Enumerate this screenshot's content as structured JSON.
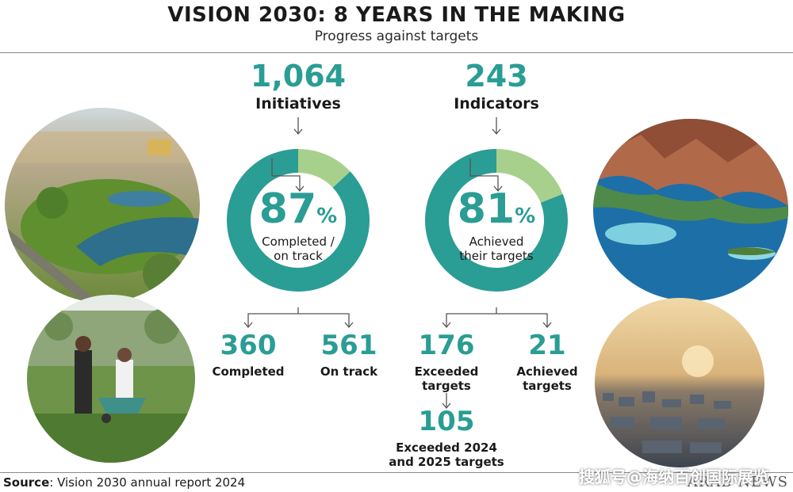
{
  "header": {
    "title": "VISION 2030: 8 YEARS IN THE MAKING",
    "subtitle": "Progress against targets"
  },
  "chart_data": [
    {
      "type": "pie",
      "total_value": "1,064",
      "total_label": "Initiatives",
      "center_value": "87",
      "center_unit": "%",
      "center_label_line1": "Completed /",
      "center_label_line2": "on track",
      "slices": [
        {
          "name": "Completed / on track",
          "value": 87,
          "color": "#2a9d94"
        },
        {
          "name": "Other",
          "value": 13,
          "color": "#a8d08d"
        }
      ],
      "breakdown": [
        {
          "value": "360",
          "label": "Completed"
        },
        {
          "value": "561",
          "label": "On track"
        }
      ]
    },
    {
      "type": "pie",
      "total_value": "243",
      "total_label": "Indicators",
      "center_value": "81",
      "center_unit": "%",
      "center_label_line1": "Achieved",
      "center_label_line2": "their targets",
      "slices": [
        {
          "name": "Achieved their targets",
          "value": 81,
          "color": "#2a9d94"
        },
        {
          "name": "Other",
          "value": 19,
          "color": "#a8d08d"
        }
      ],
      "breakdown": [
        {
          "value": "176",
          "label_line1": "Exceeded",
          "label_line2": "targets"
        },
        {
          "value": "21",
          "label_line1": "Achieved",
          "label_line2": "targets"
        }
      ],
      "sub_breakdown": {
        "value": "105",
        "label_line1": "Exceeded 2024",
        "label_line2": "and 2025 targets"
      }
    }
  ],
  "colors": {
    "accent": "#2a9d94",
    "light": "#a8d08d",
    "arrow": "#555555"
  },
  "footer": {
    "source_label": "Source",
    "source_text": ": Vision 2030 annual report 2024",
    "brand": "ARAB NEWS",
    "watermark": "搜狐号@海纳百创国际展览"
  },
  "photos": [
    {
      "icon": "city-park-photo"
    },
    {
      "icon": "garden-workers-photo"
    },
    {
      "icon": "coastal-mountains-photo"
    },
    {
      "icon": "desert-city-sunset-photo"
    }
  ]
}
